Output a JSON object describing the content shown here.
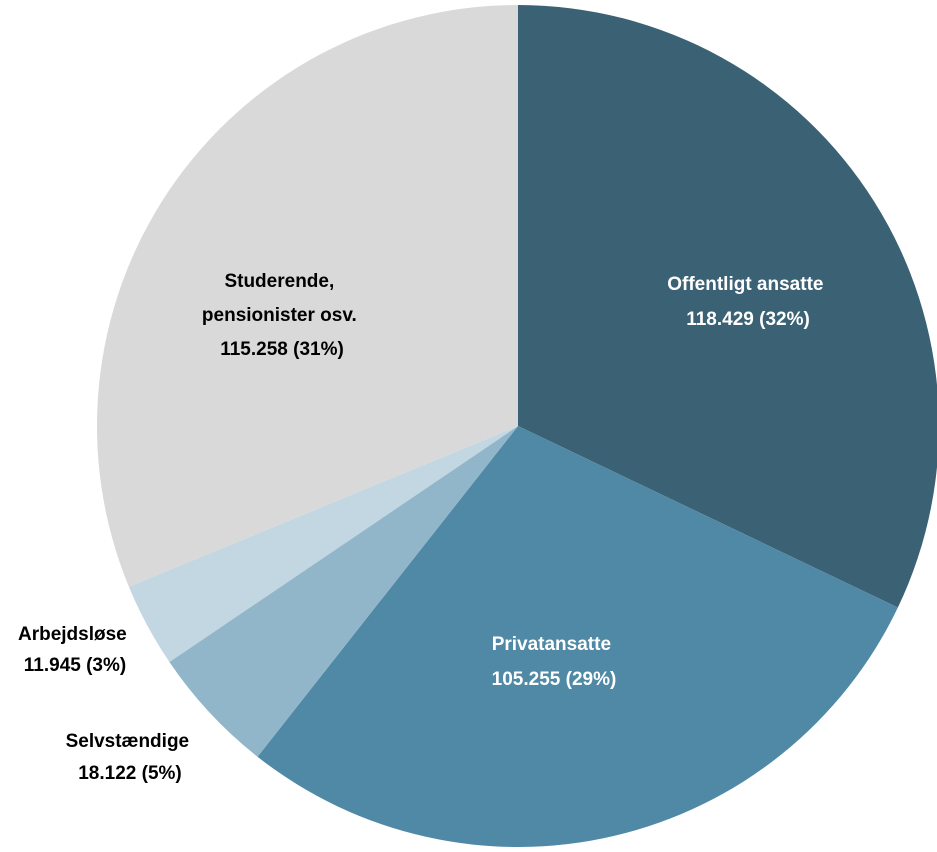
{
  "chart_data": {
    "type": "pie",
    "title": "",
    "slices": [
      {
        "label": "Offentligt ansatte",
        "value_text": "118.429 (32%)",
        "value": 118429,
        "percent": 32,
        "color": "#3b6174",
        "label_color": "#ffffff"
      },
      {
        "label": "Privatansatte",
        "value_text": "105.255 (29%)",
        "value": 105255,
        "percent": 29,
        "color": "#4f89a5",
        "label_color": "#ffffff"
      },
      {
        "label": "Selvstændige",
        "value_text": "18.122 (5%)",
        "value": 18122,
        "percent": 5,
        "color": "#92b6c9",
        "label_color": "#000000"
      },
      {
        "label": "Arbejdsløse",
        "value_text": "11.945 (3%)",
        "value": 11945,
        "percent": 3,
        "color": "#c2d7e2",
        "label_color": "#000000"
      },
      {
        "label_lines": [
          "Studerende,",
          "pensionister osv."
        ],
        "value_text": "115.258 (31%)",
        "value": 115258,
        "percent": 31,
        "color": "#d9d9d9",
        "label_color": "#000000"
      }
    ]
  }
}
